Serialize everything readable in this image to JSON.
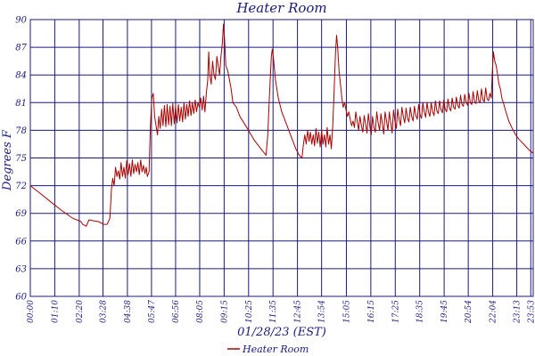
{
  "chart_data": {
    "type": "line",
    "title": "Heater Room",
    "xlabel": "01/28/23 (EST)",
    "ylabel": "Degrees F",
    "ylim": [
      60,
      90
    ],
    "yticks": [
      60,
      63,
      66,
      69,
      72,
      75,
      78,
      81,
      84,
      87,
      90
    ],
    "xlim": [
      0,
      1440
    ],
    "xticks": [
      {
        "t": 0,
        "label": "00:00"
      },
      {
        "t": 70,
        "label": "01:10"
      },
      {
        "t": 140,
        "label": "02:20"
      },
      {
        "t": 208,
        "label": "03:28"
      },
      {
        "t": 278,
        "label": "04:38"
      },
      {
        "t": 347,
        "label": "05:47"
      },
      {
        "t": 416,
        "label": "06:56"
      },
      {
        "t": 485,
        "label": "08:05"
      },
      {
        "t": 555,
        "label": "09:15"
      },
      {
        "t": 625,
        "label": "10:25"
      },
      {
        "t": 695,
        "label": "11:35"
      },
      {
        "t": 765,
        "label": "12:45"
      },
      {
        "t": 834,
        "label": "13:54"
      },
      {
        "t": 905,
        "label": "15:05"
      },
      {
        "t": 975,
        "label": "16:15"
      },
      {
        "t": 1045,
        "label": "17:25"
      },
      {
        "t": 1115,
        "label": "18:35"
      },
      {
        "t": 1185,
        "label": "19:45"
      },
      {
        "t": 1254,
        "label": "20:54"
      },
      {
        "t": 1324,
        "label": "22:04"
      },
      {
        "t": 1393,
        "label": "23:13"
      },
      {
        "t": 1433,
        "label": "23:53"
      }
    ],
    "grid": true,
    "legend_position": "bottom-center",
    "series": [
      {
        "name": "Heater Room",
        "color": "#aa0000",
        "points": [
          [
            0,
            72.0
          ],
          [
            30,
            71.1
          ],
          [
            60,
            70.2
          ],
          [
            90,
            69.3
          ],
          [
            120,
            68.5
          ],
          [
            145,
            68.1
          ],
          [
            150,
            67.8
          ],
          [
            160,
            67.6
          ],
          [
            168,
            68.3
          ],
          [
            180,
            68.2
          ],
          [
            195,
            68.1
          ],
          [
            210,
            67.8
          ],
          [
            220,
            67.8
          ],
          [
            228,
            68.5
          ],
          [
            232,
            71.5
          ],
          [
            236,
            72.8
          ],
          [
            240,
            72.0
          ],
          [
            244,
            74.0
          ],
          [
            248,
            73.0
          ],
          [
            252,
            73.6
          ],
          [
            256,
            72.7
          ],
          [
            260,
            74.5
          ],
          [
            264,
            73.0
          ],
          [
            268,
            74.0
          ],
          [
            272,
            72.8
          ],
          [
            276,
            74.7
          ],
          [
            280,
            73.2
          ],
          [
            284,
            74.4
          ],
          [
            288,
            73.0
          ],
          [
            292,
            74.8
          ],
          [
            296,
            73.3
          ],
          [
            300,
            74.3
          ],
          [
            304,
            73.5
          ],
          [
            308,
            74.5
          ],
          [
            312,
            73.2
          ],
          [
            316,
            74.8
          ],
          [
            320,
            73.5
          ],
          [
            324,
            74.2
          ],
          [
            328,
            73.3
          ],
          [
            332,
            74.0
          ],
          [
            335,
            73.0
          ],
          [
            340,
            73.5
          ],
          [
            344,
            78.5
          ],
          [
            348,
            81.5
          ],
          [
            352,
            82.0
          ],
          [
            356,
            79.5
          ],
          [
            360,
            78.5
          ],
          [
            364,
            77.5
          ],
          [
            368,
            79.5
          ],
          [
            372,
            78.2
          ],
          [
            376,
            80.3
          ],
          [
            380,
            78.5
          ],
          [
            384,
            80.7
          ],
          [
            388,
            78.4
          ],
          [
            392,
            80.8
          ],
          [
            396,
            78.6
          ],
          [
            400,
            80.6
          ],
          [
            404,
            78.5
          ],
          [
            408,
            80.9
          ],
          [
            412,
            78.7
          ],
          [
            416,
            80.6
          ],
          [
            420,
            78.8
          ],
          [
            424,
            80.8
          ],
          [
            428,
            79.0
          ],
          [
            432,
            80.5
          ],
          [
            436,
            78.9
          ],
          [
            440,
            81.0
          ],
          [
            444,
            79.2
          ],
          [
            448,
            80.8
          ],
          [
            452,
            79.5
          ],
          [
            456,
            81.2
          ],
          [
            460,
            79.6
          ],
          [
            464,
            81.0
          ],
          [
            468,
            79.8
          ],
          [
            472,
            81.3
          ],
          [
            476,
            80.0
          ],
          [
            480,
            81.0
          ],
          [
            484,
            80.5
          ],
          [
            488,
            81.5
          ],
          [
            492,
            80.2
          ],
          [
            496,
            81.7
          ],
          [
            500,
            80.0
          ],
          [
            504,
            82.0
          ],
          [
            508,
            83.5
          ],
          [
            511,
            86.5
          ],
          [
            514,
            84.0
          ],
          [
            518,
            83.0
          ],
          [
            522,
            85.5
          ],
          [
            526,
            84.0
          ],
          [
            530,
            83.5
          ],
          [
            534,
            86.0
          ],
          [
            538,
            85.0
          ],
          [
            542,
            84.0
          ],
          [
            546,
            86.0
          ],
          [
            550,
            87.5
          ],
          [
            553,
            89.5
          ],
          [
            556,
            88.0
          ],
          [
            560,
            85.0
          ],
          [
            565,
            84.5
          ],
          [
            570,
            83.5
          ],
          [
            575,
            82.5
          ],
          [
            580,
            81.0
          ],
          [
            590,
            80.5
          ],
          [
            600,
            79.5
          ],
          [
            620,
            78.3
          ],
          [
            640,
            77.0
          ],
          [
            660,
            76.0
          ],
          [
            675,
            75.3
          ],
          [
            680,
            77.5
          ],
          [
            685,
            82.0
          ],
          [
            690,
            86.0
          ],
          [
            693,
            86.8
          ],
          [
            697,
            85.5
          ],
          [
            702,
            83.5
          ],
          [
            710,
            81.5
          ],
          [
            720,
            80.0
          ],
          [
            735,
            78.5
          ],
          [
            750,
            77.0
          ],
          [
            760,
            76.0
          ],
          [
            770,
            75.3
          ],
          [
            778,
            75.0
          ],
          [
            782,
            76.5
          ],
          [
            786,
            77.5
          ],
          [
            790,
            76.5
          ],
          [
            794,
            78.0
          ],
          [
            798,
            76.8
          ],
          [
            802,
            77.8
          ],
          [
            806,
            76.5
          ],
          [
            810,
            77.5
          ],
          [
            814,
            76.3
          ],
          [
            818,
            78.2
          ],
          [
            822,
            76.6
          ],
          [
            826,
            77.8
          ],
          [
            830,
            76.2
          ],
          [
            834,
            78.0
          ],
          [
            838,
            76.5
          ],
          [
            842,
            77.5
          ],
          [
            846,
            76.2
          ],
          [
            850,
            78.3
          ],
          [
            854,
            76.5
          ],
          [
            858,
            77.5
          ],
          [
            862,
            76.0
          ],
          [
            866,
            78.5
          ],
          [
            870,
            82.5
          ],
          [
            874,
            86.5
          ],
          [
            877,
            88.3
          ],
          [
            880,
            87.0
          ],
          [
            884,
            84.5
          ],
          [
            888,
            83.0
          ],
          [
            892,
            81.5
          ],
          [
            896,
            80.5
          ],
          [
            900,
            81.0
          ],
          [
            904,
            80.2
          ],
          [
            908,
            79.5
          ],
          [
            912,
            80.0
          ],
          [
            916,
            79.2
          ],
          [
            920,
            78.5
          ],
          [
            924,
            79.0
          ],
          [
            928,
            78.3
          ],
          [
            932,
            80.0
          ],
          [
            936,
            79.0
          ],
          [
            940,
            78.0
          ],
          [
            944,
            79.5
          ],
          [
            948,
            78.5
          ],
          [
            952,
            77.8
          ],
          [
            956,
            79.6
          ],
          [
            960,
            78.7
          ],
          [
            964,
            77.7
          ],
          [
            968,
            79.8
          ],
          [
            972,
            78.5
          ],
          [
            976,
            77.5
          ],
          [
            980,
            79.5
          ],
          [
            984,
            78.3
          ],
          [
            988,
            77.8
          ],
          [
            992,
            80.0
          ],
          [
            996,
            78.8
          ],
          [
            1000,
            78.0
          ],
          [
            1004,
            79.8
          ],
          [
            1008,
            78.7
          ],
          [
            1012,
            77.6
          ],
          [
            1016,
            80.0
          ],
          [
            1020,
            79.0
          ],
          [
            1024,
            78.0
          ],
          [
            1028,
            80.0
          ],
          [
            1032,
            78.8
          ],
          [
            1036,
            77.7
          ],
          [
            1040,
            80.2
          ],
          [
            1044,
            79.0
          ],
          [
            1048,
            78.2
          ],
          [
            1052,
            80.3
          ],
          [
            1056,
            79.2
          ],
          [
            1060,
            78.5
          ],
          [
            1064,
            80.5
          ],
          [
            1068,
            79.5
          ],
          [
            1072,
            78.8
          ],
          [
            1076,
            80.4
          ],
          [
            1080,
            79.3
          ],
          [
            1084,
            78.9
          ],
          [
            1088,
            80.5
          ],
          [
            1092,
            79.5
          ],
          [
            1096,
            79.0
          ],
          [
            1100,
            80.6
          ],
          [
            1104,
            79.6
          ],
          [
            1108,
            79.2
          ],
          [
            1112,
            80.8
          ],
          [
            1116,
            79.7
          ],
          [
            1120,
            79.3
          ],
          [
            1124,
            81.0
          ],
          [
            1128,
            80.0
          ],
          [
            1132,
            79.4
          ],
          [
            1136,
            81.0
          ],
          [
            1140,
            80.0
          ],
          [
            1144,
            79.5
          ],
          [
            1148,
            81.0
          ],
          [
            1152,
            80.0
          ],
          [
            1156,
            79.6
          ],
          [
            1160,
            81.2
          ],
          [
            1164,
            80.1
          ],
          [
            1168,
            79.8
          ],
          [
            1172,
            81.2
          ],
          [
            1176,
            80.2
          ],
          [
            1180,
            79.9
          ],
          [
            1184,
            81.3
          ],
          [
            1188,
            80.3
          ],
          [
            1192,
            80.0
          ],
          [
            1196,
            81.4
          ],
          [
            1200,
            80.4
          ],
          [
            1204,
            80.1
          ],
          [
            1208,
            81.5
          ],
          [
            1212,
            80.5
          ],
          [
            1216,
            80.3
          ],
          [
            1220,
            81.6
          ],
          [
            1224,
            80.7
          ],
          [
            1228,
            80.4
          ],
          [
            1232,
            81.8
          ],
          [
            1236,
            80.8
          ],
          [
            1240,
            80.6
          ],
          [
            1244,
            81.9
          ],
          [
            1248,
            81.0
          ],
          [
            1252,
            80.7
          ],
          [
            1256,
            82.0
          ],
          [
            1260,
            81.0
          ],
          [
            1264,
            80.8
          ],
          [
            1268,
            82.2
          ],
          [
            1272,
            81.1
          ],
          [
            1276,
            80.9
          ],
          [
            1280,
            82.3
          ],
          [
            1284,
            81.2
          ],
          [
            1288,
            81.0
          ],
          [
            1292,
            82.5
          ],
          [
            1296,
            81.3
          ],
          [
            1300,
            81.1
          ],
          [
            1304,
            82.6
          ],
          [
            1308,
            81.4
          ],
          [
            1312,
            81.2
          ],
          [
            1316,
            82.0
          ],
          [
            1320,
            81.5
          ],
          [
            1323,
            84.5
          ],
          [
            1326,
            86.5
          ],
          [
            1330,
            85.5
          ],
          [
            1334,
            85.0
          ],
          [
            1338,
            84.0
          ],
          [
            1342,
            83.0
          ],
          [
            1346,
            82.5
          ],
          [
            1350,
            81.5
          ],
          [
            1356,
            80.8
          ],
          [
            1362,
            80.0
          ],
          [
            1370,
            79.0
          ],
          [
            1380,
            78.2
          ],
          [
            1390,
            77.5
          ],
          [
            1400,
            77.0
          ],
          [
            1410,
            76.6
          ],
          [
            1420,
            76.2
          ],
          [
            1430,
            75.8
          ],
          [
            1440,
            75.5
          ]
        ]
      }
    ]
  }
}
